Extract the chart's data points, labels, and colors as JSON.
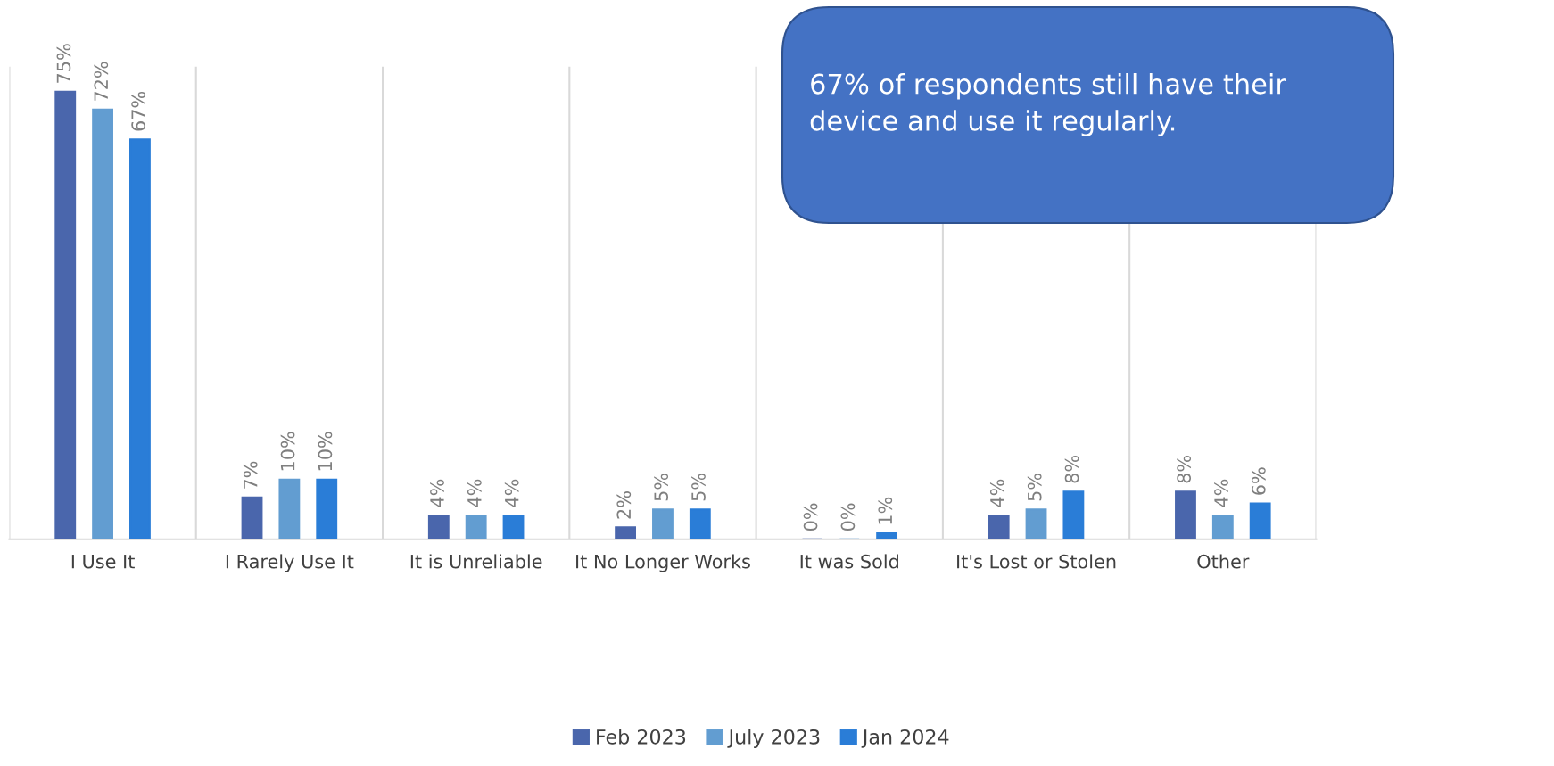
{
  "chart_data": {
    "type": "bar",
    "categories": [
      "I Use It",
      "I Rarely Use It",
      "It is Unreliable",
      "It No Longer Works",
      "It was Sold",
      "It's Lost or Stolen",
      "Other"
    ],
    "series": [
      {
        "name": "Feb 2023",
        "color": "#4a66ac",
        "values": [
          75,
          7,
          4,
          2,
          0,
          4,
          8
        ],
        "value_labels": [
          "75%",
          "7%",
          "4%",
          "2%",
          "0%",
          "4%",
          "8%"
        ]
      },
      {
        "name": "July 2023",
        "color": "#629dd1",
        "values": [
          72,
          10,
          4,
          5,
          0,
          5,
          4
        ],
        "value_labels": [
          "72%",
          "10%",
          "4%",
          "5%",
          "0%",
          "5%",
          "4%"
        ]
      },
      {
        "name": "Jan 2024",
        "color": "#2a7dd7",
        "values": [
          67,
          10,
          4,
          5,
          1,
          8,
          6
        ],
        "value_labels": [
          "67%",
          "10%",
          "4%",
          "5%",
          "1%",
          "8%",
          "6%"
        ]
      }
    ],
    "annotations": [
      "67% of respondents still have their device and use it regularly."
    ],
    "grid": "x",
    "legend": "bottom"
  }
}
